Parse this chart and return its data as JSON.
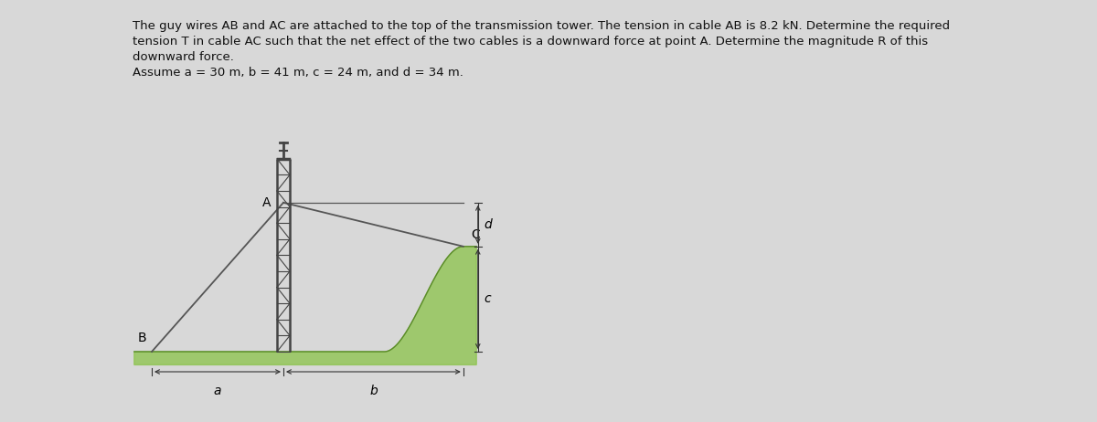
{
  "title_line1": "The guy wires AB and AC are attached to the top of the transmission tower. The tension in cable AB is 8.2 kN. Determine the required",
  "title_line2": "tension T in cable AC such that the net effect of the two cables is a downward force at point A. Determine the magnitude R of this",
  "title_line3": "downward force.",
  "title_line4": "Assume a = 30 m, b = 41 m, c = 24 m, and d = 34 m.",
  "bg_color": "#d8d8d8",
  "ground_color_fill": "#8bc34a",
  "ground_color_edge": "#5a8a2a",
  "tower_color": "#444444",
  "cable_color": "#555555",
  "dim_color": "#333333",
  "text_color": "#111111",
  "a_val": 30,
  "b_val": 41,
  "c_val": 24,
  "d_val": 34,
  "fig_width": 12.0,
  "fig_height": 4.62,
  "dpi": 100
}
